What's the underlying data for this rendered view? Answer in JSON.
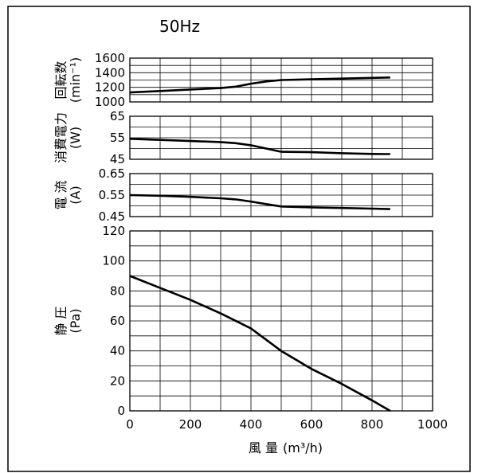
{
  "title": "50Hz",
  "chart_data": [
    {
      "type": "line",
      "ylabel_main": "回転数",
      "ylabel_unit": "(min⁻¹)",
      "ylim": [
        1000,
        1600
      ],
      "yticks": [
        1000,
        1200,
        1400,
        1600
      ],
      "xlim": [
        0,
        1000
      ],
      "series": [
        {
          "x": [
            0,
            100,
            200,
            300,
            350,
            400,
            450,
            500,
            600,
            700,
            800,
            860
          ],
          "y": [
            1130,
            1150,
            1170,
            1190,
            1210,
            1250,
            1280,
            1300,
            1310,
            1320,
            1330,
            1335
          ]
        }
      ]
    },
    {
      "type": "line",
      "ylabel_main": "消費電力",
      "ylabel_unit": "(W)",
      "ylim": [
        45,
        65
      ],
      "yticks": [
        45,
        55,
        65
      ],
      "xlim": [
        0,
        1000
      ],
      "series": [
        {
          "x": [
            0,
            100,
            200,
            300,
            350,
            400,
            450,
            500,
            600,
            700,
            800,
            860
          ],
          "y": [
            54.5,
            54,
            53.5,
            53,
            52.5,
            51.5,
            50,
            48.5,
            48.3,
            47.8,
            47.5,
            47.4
          ]
        }
      ]
    },
    {
      "type": "line",
      "ylabel_main": "電 流",
      "ylabel_unit": "(A)",
      "ylim": [
        0.45,
        0.65
      ],
      "yticks": [
        0.45,
        0.55,
        0.65
      ],
      "xlim": [
        0,
        1000
      ],
      "series": [
        {
          "x": [
            0,
            100,
            200,
            300,
            350,
            400,
            450,
            500,
            600,
            700,
            800,
            860
          ],
          "y": [
            0.55,
            0.547,
            0.542,
            0.535,
            0.53,
            0.52,
            0.508,
            0.497,
            0.493,
            0.49,
            0.487,
            0.485
          ]
        }
      ]
    },
    {
      "type": "line",
      "ylabel_main": "静 圧",
      "ylabel_unit": "(Pa)",
      "ylim": [
        0,
        120
      ],
      "yticks": [
        0,
        20,
        40,
        60,
        80,
        100,
        120
      ],
      "xlim": [
        0,
        1000
      ],
      "xticks": [
        0,
        200,
        400,
        600,
        800,
        1000
      ],
      "xlabel": "風 量",
      "xunit": "(m³/h)",
      "series": [
        {
          "x": [
            0,
            100,
            200,
            300,
            400,
            500,
            600,
            700,
            800,
            860
          ],
          "y": [
            90,
            82,
            74,
            65,
            55,
            40,
            28,
            18,
            7,
            0
          ]
        }
      ]
    }
  ]
}
